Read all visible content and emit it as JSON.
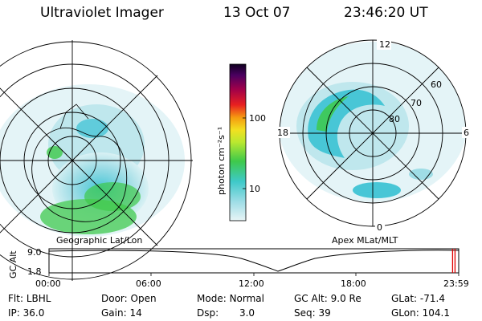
{
  "header": {
    "title": "Ultraviolet Imager",
    "date": "13 Oct 07",
    "time": "23:46:20 UT"
  },
  "colorbar": {
    "label": "photon cm⁻²s⁻¹",
    "ticks": [
      "100",
      "10"
    ]
  },
  "apex_grid": {
    "mlt_labels": [
      "12",
      "18",
      "6",
      "0"
    ],
    "lat_labels": [
      "60",
      "70",
      "80"
    ]
  },
  "captions": {
    "geo": "Geographic Lat/Lon",
    "apex": "Apex MLat/MLT"
  },
  "altitude_plot": {
    "ylabel": "GC Alt",
    "yticks": [
      "9.0",
      "1.8"
    ],
    "xticks": [
      "00:00",
      "06:00",
      "12:00",
      "18:00",
      "23:59"
    ],
    "current_time_fraction": 0.991
  },
  "info": {
    "filter": {
      "label": "Flt:",
      "value": "LBHL"
    },
    "ip": {
      "label": "IP:",
      "value": "36.0"
    },
    "door": {
      "label": "Door:",
      "value": "Open"
    },
    "gain": {
      "label": "Gain:",
      "value": "14"
    },
    "mode": {
      "label": "Mode:",
      "value": "Normal"
    },
    "dsp": {
      "label": "Dsp:",
      "value": "3.0"
    },
    "gc_alt": {
      "label": "GC Alt:",
      "value": "9.0 Re"
    },
    "seq": {
      "label": "Seq:",
      "value": "39"
    },
    "glat": {
      "label": "GLat:",
      "value": "-71.4"
    },
    "glon": {
      "label": "GLon:",
      "value": "104.1"
    }
  },
  "colors": {
    "marker": "#e00000",
    "faint": "#cfe9ef",
    "cyan": "#48c6d6",
    "green": "#3ec94a",
    "lime": "#b8e830"
  }
}
